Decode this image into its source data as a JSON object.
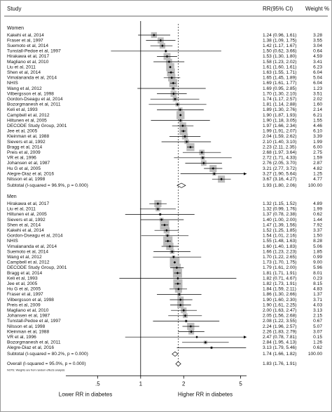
{
  "chart_data": {
    "type": "forest",
    "headers": {
      "study": "Study",
      "ci": "RR(95% CI)",
      "weight": "Weight %"
    },
    "log_x": true,
    "xlim": [
      0.3,
      5.5
    ],
    "xticks": [
      {
        "value": 0.5,
        "label": ".5"
      },
      1,
      2,
      5
    ],
    "null_line": 1,
    "box_color": "#bdbdbd",
    "x_label_left": "Lower RR in diabetes",
    "x_label_right": "Higher RR in diabetes",
    "note": "NOTE: Weights are from random effects analysis",
    "sections": [
      {
        "name": "Women",
        "studies": [
          {
            "study": "Kakehi et al, 2014",
            "rr": 1.24,
            "lo": 0.96,
            "hi": 1.61,
            "ci_label": "1.24 (0.96, 1.61)",
            "weight": 3.28,
            "weight_label": "3.28"
          },
          {
            "study": "Fraser et al, 1997",
            "rr": 1.38,
            "lo": 1.09,
            "hi": 1.75,
            "ci_label": "1.38 (1.09, 1.75)",
            "weight": 3.55,
            "weight_label": "3.55"
          },
          {
            "study": "Suemoto et al, 2014",
            "rr": 1.42,
            "lo": 1.17,
            "hi": 1.67,
            "ci_label": "1.42 (1.17, 1.67)",
            "weight": 3.04,
            "weight_label": "3.04"
          },
          {
            "study": "Tunstall-Pedoe et al, 1997",
            "rr": 1.5,
            "lo": 0.62,
            "hi": 3.66,
            "ci_label": "1.50 (0.62, 3.66)",
            "weight": 0.64,
            "weight_label": "0.64"
          },
          {
            "study": "Hirakawa et al, 2017",
            "rr": 1.53,
            "lo": 1.3,
            "hi": 1.8,
            "ci_label": "1.53 (1.30, 1.80)",
            "weight": 4.59,
            "weight_label": "4.59"
          },
          {
            "study": "Magliano et al, 2010",
            "rr": 1.58,
            "lo": 1.23,
            "hi": 2.02,
            "ci_label": "1.58 (1.23, 2.02)",
            "weight": 3.41,
            "weight_label": "3.41"
          },
          {
            "study": "Liu et al, 2011",
            "rr": 1.61,
            "lo": 1.6,
            "hi": 1.61,
            "ci_label": "1.61 (1.60, 1.61)",
            "weight": 6.23,
            "weight_label": "6.23"
          },
          {
            "study": "Shen et al, 2014",
            "rr": 1.63,
            "lo": 1.55,
            "hi": 1.71,
            "ci_label": "1.63 (1.55, 1.71)",
            "weight": 6.04,
            "weight_label": "6.04"
          },
          {
            "study": "Vimalananda et al, 2014",
            "rr": 1.65,
            "lo": 1.45,
            "hi": 1.89,
            "ci_label": "1.65 (1.45, 1.89)",
            "weight": 5.04,
            "weight_label": "5.04"
          },
          {
            "study": "NHIS",
            "rr": 1.69,
            "lo": 1.61,
            "hi": 1.77,
            "ci_label": "1.69 (1.61, 1.77)",
            "weight": 6.04,
            "weight_label": "6.04"
          },
          {
            "study": "Wang et al, 2012",
            "rr": 1.69,
            "lo": 0.95,
            "hi": 2.85,
            "ci_label": "1.69 (0.95, 2.85)",
            "weight": 1.23,
            "weight_label": "1.23"
          },
          {
            "study": "Vilbergsson et al, 1998",
            "rr": 1.7,
            "lo": 1.3,
            "hi": 2.1,
            "ci_label": "1.70 (1.30, 2.10)",
            "weight": 3.51,
            "weight_label": "3.51"
          },
          {
            "study": "Gordon-Dseagu et al, 2014",
            "rr": 1.74,
            "lo": 1.17,
            "hi": 2.57,
            "ci_label": "1.74 (1.17, 2.57)",
            "weight": 2.02,
            "weight_label": "2.02"
          },
          {
            "study": "Bozorgmanesh et al, 2011",
            "rr": 1.81,
            "lo": 1.14,
            "hi": 2.88,
            "ci_label": "1.81 (1.14, 2.88)",
            "weight": 1.6,
            "weight_label": "1.60"
          },
          {
            "study": "Keli et al, 1993",
            "rr": 1.89,
            "lo": 1.3,
            "hi": 2.76,
            "ci_label": "1.89 (1.30, 2.76)",
            "weight": 2.14,
            "weight_label": "2.14"
          },
          {
            "study": "Campbell et al, 2012",
            "rr": 1.9,
            "lo": 1.87,
            "hi": 1.93,
            "ci_label": "1.90 (1.87, 1.93)",
            "weight": 6.21,
            "weight_label": "6.21"
          },
          {
            "study": "Hiltunen et al, 2005",
            "rr": 1.9,
            "lo": 1.18,
            "hi": 3.05,
            "ci_label": "1.90 (1.18, 3.05)",
            "weight": 1.55,
            "weight_label": "1.55"
          },
          {
            "study": "DECODE Study Group, 2001",
            "rr": 1.97,
            "lo": 1.66,
            "hi": 2.34,
            "ci_label": "1.97 (1.66, 2.34)",
            "weight": 4.46,
            "weight_label": "4.46"
          },
          {
            "study": "Jee et al, 2005",
            "rr": 1.99,
            "lo": 1.91,
            "hi": 2.07,
            "ci_label": "1.99 (1.91, 2.07)",
            "weight": 6.1,
            "weight_label": "6.10"
          },
          {
            "study": "Kleinman et al, 1988",
            "rr": 2.04,
            "lo": 1.59,
            "hi": 2.62,
            "ci_label": "2.04 (1.59, 2.62)",
            "weight": 3.39,
            "weight_label": "3.39"
          },
          {
            "study": "Sievers et al, 1992",
            "rr": 2.1,
            "lo": 1.4,
            "hi": 3.1,
            "ci_label": "2.10 (1.40, 3.10)",
            "weight": 1.99,
            "weight_label": "1.99"
          },
          {
            "study": "Bragg et al, 2014",
            "rr": 2.23,
            "lo": 2.11,
            "hi": 2.35,
            "ci_label": "2.23 (2.11, 2.35)",
            "weight": 6.0,
            "weight_label": "6.00"
          },
          {
            "study": "Preis et al, 2009",
            "rr": 2.68,
            "lo": 1.97,
            "hi": 3.64,
            "ci_label": "2.68 (1.97, 3.64)",
            "weight": 2.75,
            "weight_label": "2.75"
          },
          {
            "study": "VR et al, 1996",
            "rr": 2.72,
            "lo": 1.71,
            "hi": 4.33,
            "ci_label": "2.72 (1.71, 4.33)",
            "weight": 1.59,
            "weight_label": "1.59"
          },
          {
            "study": "Johansen et al, 1987",
            "rr": 2.76,
            "lo": 2.05,
            "hi": 3.7,
            "ci_label": "2.76 (2.05, 3.70)",
            "weight": 2.87,
            "weight_label": "2.87"
          },
          {
            "study": "Hu G et al, 2005",
            "rr": 3.21,
            "lo": 2.77,
            "hi": 3.72,
            "ci_label": "3.21 (2.77, 3.72)",
            "weight": 4.82,
            "weight_label": "4.82"
          },
          {
            "study": "Alegre-Diaz et al, 2016",
            "rr": 3.27,
            "lo": 1.9,
            "hi": 5.64,
            "ci_label": "3.27 (1.90, 5.64)",
            "weight": 1.25,
            "weight_label": "1.25"
          },
          {
            "study": "Nilsson et al, 1998",
            "rr": 3.67,
            "lo": 3.16,
            "hi": 4.27,
            "ci_label": "3.67 (3.16, 4.27)",
            "weight": 4.77,
            "weight_label": "4.77"
          }
        ],
        "subtotal": {
          "label": "Subtotal  (I-squared = 96.9%, p = 0.000)",
          "rr": 1.93,
          "lo": 1.8,
          "hi": 2.06,
          "ci_label": "1.93 (1.80, 2.06)",
          "weight_label": "100.00"
        }
      },
      {
        "name": "Men",
        "studies": [
          {
            "study": "Hirakawa et al, 2017",
            "rr": 1.32,
            "lo": 1.15,
            "hi": 1.52,
            "ci_label": "1.32 (1.15, 1.52)",
            "weight": 4.89,
            "weight_label": "4.89"
          },
          {
            "study": "Liu et al, 2011",
            "rr": 1.32,
            "lo": 0.99,
            "hi": 1.76,
            "ci_label": "1.32 (0.99, 1.76)",
            "weight": 1.99,
            "weight_label": "1.99"
          },
          {
            "study": "Hiltunen et al, 2005",
            "rr": 1.37,
            "lo": 0.78,
            "hi": 2.38,
            "ci_label": "1.37 (0.78, 2.38)",
            "weight": 0.62,
            "weight_label": "0.62"
          },
          {
            "study": "Sievers et al, 1992",
            "rr": 1.4,
            "lo": 1.0,
            "hi": 2.0,
            "ci_label": "1.40 (1.00, 2.00)",
            "weight": 1.44,
            "weight_label": "1.44"
          },
          {
            "study": "Shen et al, 2014",
            "rr": 1.47,
            "lo": 1.39,
            "hi": 1.56,
            "ci_label": "1.47 (1.39, 1.56)",
            "weight": 7.92,
            "weight_label": "7.92"
          },
          {
            "study": "Kakehi et al, 2014",
            "rr": 1.52,
            "lo": 1.25,
            "hi": 1.85,
            "ci_label": "1.52 (1.25, 1.85)",
            "weight": 3.37,
            "weight_label": "3.37"
          },
          {
            "study": "Gordon-Dseagu et al, 2014",
            "rr": 1.54,
            "lo": 1.01,
            "hi": 2.16,
            "ci_label": "1.54 (1.01, 2.16)",
            "weight": 1.5,
            "weight_label": "1.50"
          },
          {
            "study": "NHIS",
            "rr": 1.55,
            "lo": 1.48,
            "hi": 1.63,
            "ci_label": "1.55 (1.48, 1.63)",
            "weight": 8.28,
            "weight_label": "8.28"
          },
          {
            "study": "Vimalananda et al, 2014",
            "rr": 1.6,
            "lo": 1.4,
            "hi": 1.83,
            "ci_label": "1.60 (1.40, 1.83)",
            "weight": 5.06,
            "weight_label": "5.06"
          },
          {
            "study": "Suemoto et al, 2014",
            "rr": 1.66,
            "lo": 1.23,
            "hi": 2.23,
            "ci_label": "1.66 (1.23, 2.23)",
            "weight": 1.85,
            "weight_label": "1.85"
          },
          {
            "study": "Wang et al, 2012",
            "rr": 1.7,
            "lo": 1.22,
            "hi": 2.65,
            "ci_label": "1.70 (1.22, 2.65)",
            "weight": 0.99,
            "weight_label": "0.99"
          },
          {
            "study": "Campbell et al, 2012",
            "rr": 1.73,
            "lo": 1.7,
            "hi": 1.75,
            "ci_label": "1.73 (1.70, 1.75)",
            "weight": 9.0,
            "weight_label": "9.00"
          },
          {
            "study": "DECODE Study Group, 2001",
            "rr": 1.79,
            "lo": 1.61,
            "hi": 2.0,
            "ci_label": "1.79 (1.61, 2.00)",
            "weight": 5.96,
            "weight_label": "5.96"
          },
          {
            "study": "Bragg et al, 2014",
            "rr": 1.81,
            "lo": 1.71,
            "hi": 1.91,
            "ci_label": "1.81 (1.71, 1.91)",
            "weight": 8.01,
            "weight_label": "8.01"
          },
          {
            "study": "Keli et al, 1993",
            "rr": 1.82,
            "lo": 0.71,
            "hi": 4.67,
            "ci_label": "1.82 (0.71, 4.67)",
            "weight": 0.23,
            "weight_label": "0.23"
          },
          {
            "study": "Jee et al, 2005",
            "rr": 1.82,
            "lo": 1.73,
            "hi": 1.91,
            "ci_label": "1.82 (1.73, 1.91)",
            "weight": 8.15,
            "weight_label": "8.15"
          },
          {
            "study": "Hu G et al, 2005",
            "rr": 1.84,
            "lo": 1.59,
            "hi": 2.11,
            "ci_label": "1.84 (1.59, 2.11)",
            "weight": 4.83,
            "weight_label": "4.83"
          },
          {
            "study": "Fraser et al, 1997",
            "rr": 1.86,
            "lo": 1.3,
            "hi": 2.66,
            "ci_label": "1.86 (1.30, 2.66)",
            "weight": 1.37,
            "weight_label": "1.37"
          },
          {
            "study": "Vilbergsson et al, 1998",
            "rr": 1.9,
            "lo": 1.6,
            "hi": 2.3,
            "ci_label": "1.90 (1.60, 2.30)",
            "weight": 3.71,
            "weight_label": "3.71"
          },
          {
            "study": "Preis et al, 2009",
            "rr": 1.9,
            "lo": 1.61,
            "hi": 2.25,
            "ci_label": "1.90 (1.61, 2.25)",
            "weight": 4.03,
            "weight_label": "4.03"
          },
          {
            "study": "Magliano et al, 2010",
            "rr": 2.0,
            "lo": 1.63,
            "hi": 2.47,
            "ci_label": "2.00 (1.63, 2.47)",
            "weight": 3.13,
            "weight_label": "3.13"
          },
          {
            "study": "Johansen et al, 1987",
            "rr": 2.05,
            "lo": 1.56,
            "hi": 2.68,
            "ci_label": "2.05 (1.56, 2.68)",
            "weight": 2.15,
            "weight_label": "2.15"
          },
          {
            "study": "Tunstall-Pedoe et al, 1997",
            "rr": 2.08,
            "lo": 1.22,
            "hi": 3.55,
            "ci_label": "2.08 (1.22, 3.55)",
            "weight": 0.67,
            "weight_label": "0.67"
          },
          {
            "study": "Nilsson et al, 1998",
            "rr": 2.24,
            "lo": 1.96,
            "hi": 2.57,
            "ci_label": "2.24 (1.96, 2.57)",
            "weight": 5.07,
            "weight_label": "5.07"
          },
          {
            "study": "Kleinman et al, 1988",
            "rr": 2.26,
            "lo": 1.83,
            "hi": 2.79,
            "ci_label": "2.26 (1.83, 2.79)",
            "weight": 3.07,
            "weight_label": "3.07"
          },
          {
            "study": "VR et al, 1996",
            "rr": 2.47,
            "lo": 0.78,
            "hi": 7.81,
            "ci_label": "2.47 (0.78, 7.81)",
            "weight": 0.15,
            "weight_label": "0.15"
          },
          {
            "study": "Bozorgmanesh et al, 2011",
            "rr": 2.84,
            "lo": 1.95,
            "hi": 4.13,
            "ci_label": "2.84 (1.95, 4.13)",
            "weight": 1.26,
            "weight_label": "1.26"
          },
          {
            "study": "Alegre-Diaz et al, 2016",
            "rr": 3.13,
            "lo": 1.79,
            "hi": 5.46,
            "ci_label": "3.13 (1.79, 5.46)",
            "weight": 0.62,
            "weight_label": "0.62"
          }
        ],
        "subtotal": {
          "label": "Subtotal  (I-squared = 80.2%, p = 0.000)",
          "rr": 1.74,
          "lo": 1.66,
          "hi": 1.82,
          "ci_label": "1.74 (1.66, 1.82)",
          "weight_label": "100.00"
        }
      }
    ],
    "overall": {
      "label": "Overall  (I-squared = 95.0%, p = 0.000)",
      "rr": 1.83,
      "lo": 1.76,
      "hi": 1.91,
      "ci_label": "1.83 (1.76, 1.91)"
    }
  }
}
